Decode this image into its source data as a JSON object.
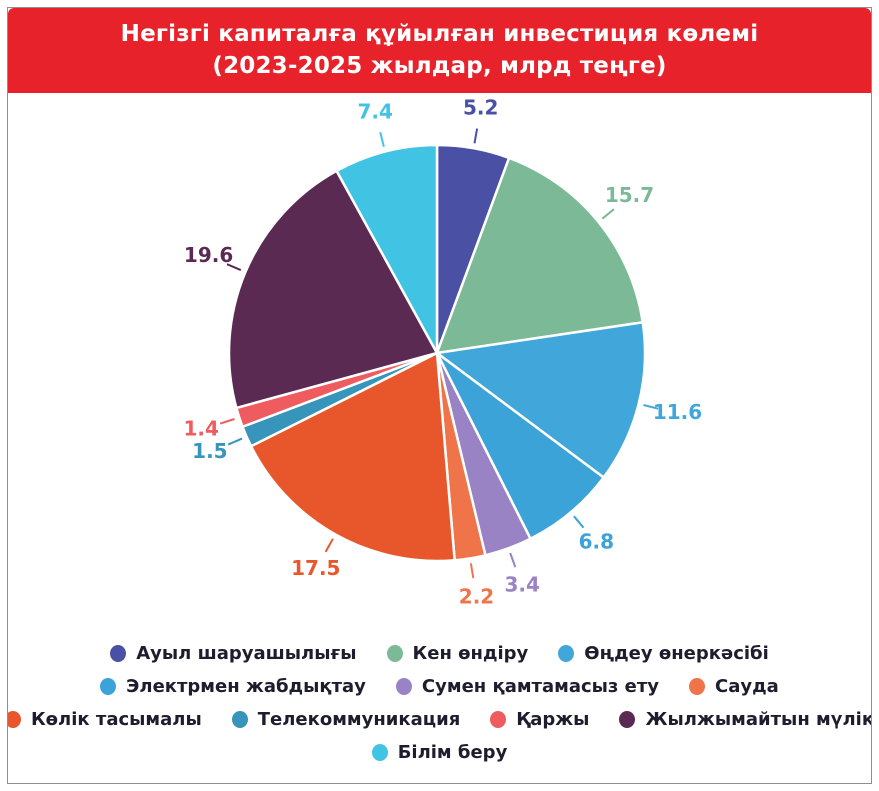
{
  "header": {
    "title_line1": "Негізгі капиталға құйылған инвестиция көлемі",
    "title_line2": "(2023-2025 жылдар, млрд теңге)",
    "background_color": "#e8222b",
    "text_color": "#ffffff"
  },
  "chart_data": {
    "type": "pie",
    "title": "Негізгі капиталға құйылған инвестиция көлемі (2023-2025 жылдар, млрд теңге)",
    "unit": "млрд теңге",
    "start_angle_deg": 0,
    "direction": "clockwise",
    "legend_position": "bottom",
    "slice_gap_color": "#ffffff",
    "slices": [
      {
        "label": "Ауыл шаруашылығы",
        "value": 5.2,
        "color": "#4a50a4"
      },
      {
        "label": "Кен өндіру",
        "value": 15.7,
        "color": "#7cba97"
      },
      {
        "label": "Өңдеу өнеркәсібі",
        "value": 11.6,
        "color": "#41a7da"
      },
      {
        "label": "Электрмен жабдықтау",
        "value": 6.8,
        "color": "#3ba3d8"
      },
      {
        "label": "Сумен қамтамасыз ету",
        "value": 3.4,
        "color": "#9a83c4"
      },
      {
        "label": "Сауда",
        "value": 2.2,
        "color": "#f0744a"
      },
      {
        "label": "Көлік тасымалы",
        "value": 17.5,
        "color": "#e8572c"
      },
      {
        "label": "Телекоммуникация",
        "value": 1.5,
        "color": "#3794bb"
      },
      {
        "label": "Қаржы",
        "value": 1.4,
        "color": "#ee5c5f"
      },
      {
        "label": "Жылжымайтын мүлік",
        "value": 19.6,
        "color": "#5b2a53"
      },
      {
        "label": "Білім беру",
        "value": 7.4,
        "color": "#41c4e4"
      }
    ]
  },
  "legend": {
    "rows": [
      [
        0,
        1,
        2
      ],
      [
        3,
        4,
        5
      ],
      [
        6,
        7,
        8,
        9
      ],
      [
        10
      ]
    ],
    "text_color": "#1d1d2e"
  }
}
